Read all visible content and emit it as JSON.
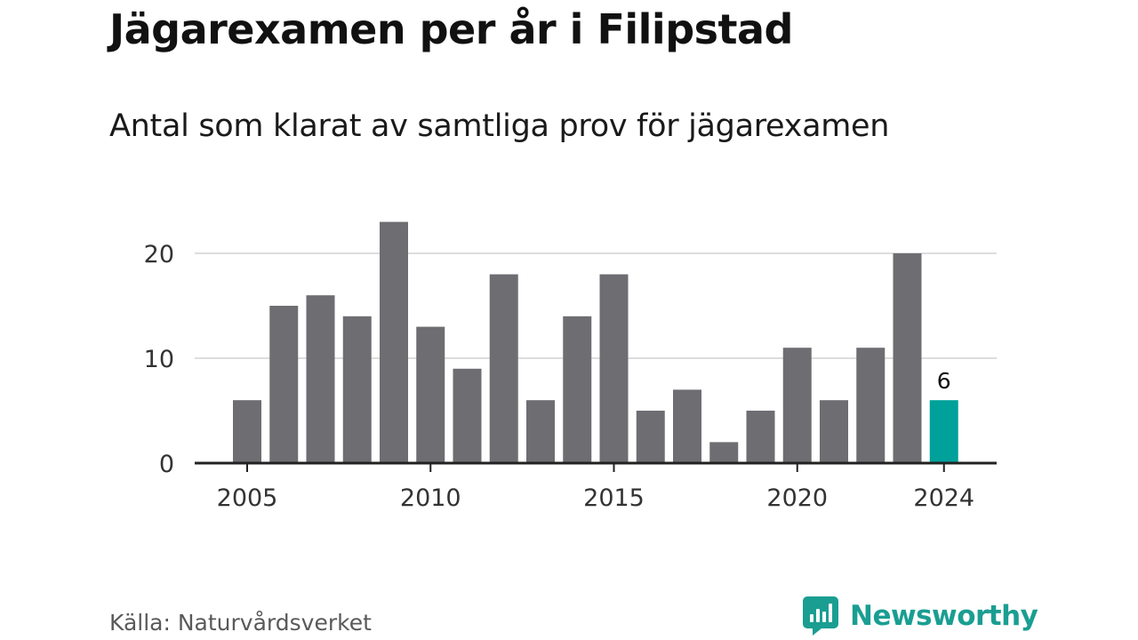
{
  "header": {
    "title": "Jägarexamen per år i Filipstad",
    "subtitle": "Antal som klarat av samtliga prov för jägarexamen"
  },
  "footer": {
    "source": "Källa: Naturvårdsverket",
    "brand_name": "Newsworthy",
    "brand_icon": "newsworthy-logo-icon"
  },
  "colors": {
    "bar": "#6e6d72",
    "highlight": "#00a19a",
    "grid": "#dddddd",
    "axis": "#222222",
    "brand": "#1a9e92"
  },
  "chart_data": {
    "type": "bar",
    "title": "Jägarexamen per år i Filipstad",
    "subtitle": "Antal som klarat av samtliga prov för jägarexamen",
    "categories": [
      2005,
      2006,
      2007,
      2008,
      2009,
      2010,
      2011,
      2012,
      2013,
      2014,
      2015,
      2016,
      2017,
      2018,
      2019,
      2020,
      2021,
      2022,
      2023,
      2024
    ],
    "values": [
      6,
      15,
      16,
      14,
      23,
      13,
      9,
      18,
      6,
      14,
      18,
      5,
      7,
      2,
      5,
      11,
      6,
      11,
      20,
      6
    ],
    "highlight_index": 19,
    "data_labels": [
      {
        "index": 19,
        "text": "6"
      }
    ],
    "x_ticks": [
      2005,
      2010,
      2015,
      2020,
      2024
    ],
    "y_ticks": [
      0,
      10,
      20
    ],
    "ylim": [
      0,
      23
    ],
    "grid": true,
    "xlabel": "",
    "ylabel": "",
    "legend": "none"
  }
}
